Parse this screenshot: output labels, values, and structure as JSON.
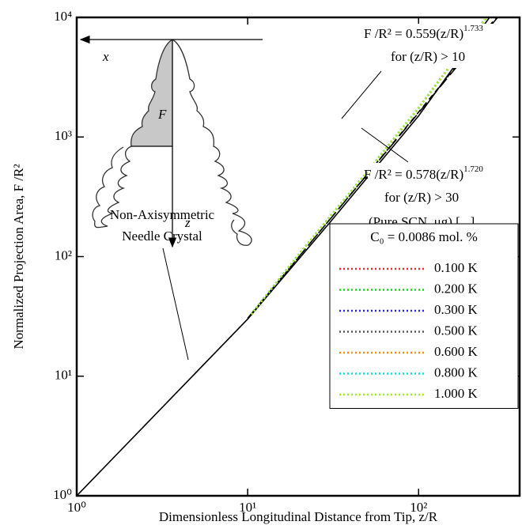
{
  "chart_data": {
    "type": "line",
    "xlog": true,
    "ylog": true,
    "xlabel": "Dimensionless Longitudinal Distance from Tip, z/R",
    "ylabel": "Normalized Projection Area, F /R²",
    "xlim": [
      1,
      390
    ],
    "ylim": [
      1,
      10000
    ],
    "xticks": [
      {
        "value": 1,
        "label": "10⁰"
      },
      {
        "value": 10,
        "label": "10¹"
      },
      {
        "value": 100,
        "label": "10²"
      }
    ],
    "yticks": [
      {
        "value": 1,
        "label": "10⁰"
      },
      {
        "value": 10,
        "label": "10¹"
      },
      {
        "value": 100,
        "label": "10²"
      },
      {
        "value": 1000,
        "label": "10³"
      },
      {
        "value": 10000,
        "label": "10⁴"
      }
    ],
    "legend_title": "C₀ = 0.0086 mol. %",
    "legend": "lower right",
    "lines": [
      {
        "color": "#000000",
        "dash": "solid",
        "x": [
          1,
          10,
          30,
          100,
          260
        ],
        "values": [
          1,
          30,
          190,
          1500,
          10000
        ]
      },
      {
        "color": "#000000",
        "dash": "long",
        "x": [
          10,
          100,
          290
        ],
        "values": [
          30.5,
          1592,
          10000
        ]
      },
      {
        "color": "#000000",
        "dash": "short",
        "x": [
          10,
          100,
          285
        ],
        "values": [
          30.2,
          1614,
          10000
        ]
      }
    ],
    "series": [
      {
        "name": "0.100 K",
        "color": "#e03030",
        "x": [
          10.5,
          20,
          50,
          100,
          250
        ],
        "values": [
          33,
          105,
          510,
          1750,
          10000
        ]
      },
      {
        "name": "0.200 K",
        "color": "#20d020",
        "x": [
          10.5,
          20,
          50,
          100,
          250
        ],
        "values": [
          33,
          105,
          510,
          1750,
          10000
        ]
      },
      {
        "name": "0.300 K",
        "color": "#2828e0",
        "x": [
          10.5,
          20,
          50,
          100,
          250
        ],
        "values": [
          33,
          105,
          510,
          1750,
          10000
        ]
      },
      {
        "name": "0.500 K",
        "color": "#555555",
        "x": [
          10.5,
          20,
          50,
          100,
          250
        ],
        "values": [
          33,
          105,
          510,
          1750,
          10000
        ]
      },
      {
        "name": "0.600 K",
        "color": "#ff8a10",
        "x": [
          10.5,
          20,
          50,
          100,
          250
        ],
        "values": [
          33,
          105,
          510,
          1750,
          10000
        ]
      },
      {
        "name": "0.800 K",
        "color": "#10e0e0",
        "x": [
          10.5,
          20,
          50,
          100,
          250
        ],
        "values": [
          33,
          105,
          510,
          1750,
          10000
        ]
      },
      {
        "name": "1.000 K",
        "color": "#a0ee20",
        "x": [
          10.5,
          20,
          50,
          100,
          250
        ],
        "values": [
          33,
          105,
          510,
          1750,
          10000
        ]
      }
    ],
    "annotations": [
      {
        "text": "F /R² = 0.559(z/R)",
        "sup": "1.733"
      },
      {
        "text": "for (z/R) > 10"
      },
      {
        "text": "F /R² = 0.578(z/R)",
        "sup": "1.720"
      },
      {
        "text": "for (z/R) > 30"
      },
      {
        "text": "(Pure SCN, μg) [...]"
      },
      {
        "text": "Non-Axisymmetric"
      },
      {
        "text": "Needle Crystal"
      }
    ],
    "inset_labels": [
      "x",
      "F",
      "z"
    ]
  }
}
